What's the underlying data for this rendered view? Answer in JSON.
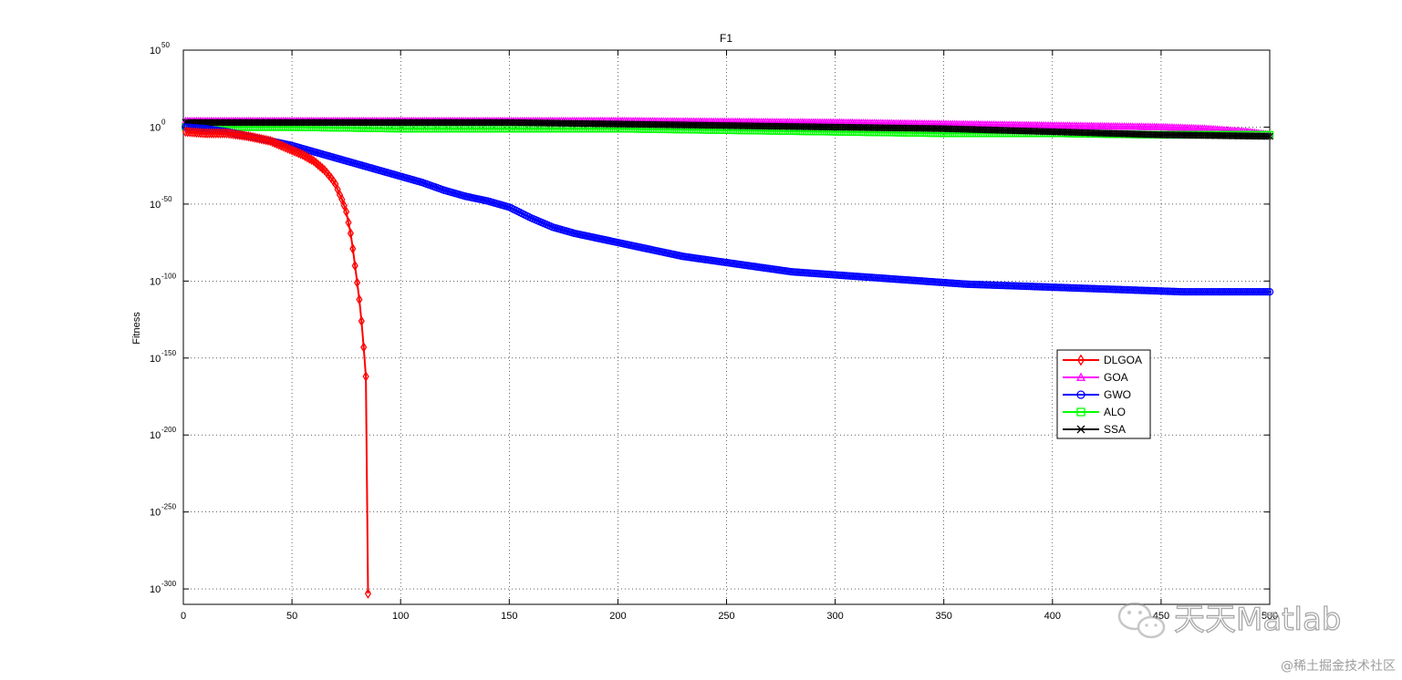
{
  "chart_data": {
    "type": "line",
    "title": "F1",
    "xlabel": "",
    "ylabel": "Fitness",
    "xlim": [
      0,
      500
    ],
    "ylim_log10": [
      -310,
      50
    ],
    "y_scale": "log",
    "grid": true,
    "x_ticks": [
      "0",
      "50",
      "100",
      "150",
      "200",
      "250",
      "300",
      "350",
      "400",
      "450",
      "500"
    ],
    "y_ticks": [
      {
        "base": "10",
        "exp": "50"
      },
      {
        "base": "10",
        "exp": "0"
      },
      {
        "base": "10",
        "exp": "-50"
      },
      {
        "base": "10",
        "exp": "-100"
      },
      {
        "base": "10",
        "exp": "-150"
      },
      {
        "base": "10",
        "exp": "-200"
      },
      {
        "base": "10",
        "exp": "-250"
      },
      {
        "base": "10",
        "exp": "-300"
      }
    ],
    "legend_position": "right-center",
    "series": [
      {
        "name": "DLGOA",
        "color": "#ff0000",
        "marker": "diamond",
        "x": [
          1,
          10,
          20,
          30,
          40,
          50,
          55,
          60,
          65,
          68,
          70,
          72,
          73,
          74,
          75,
          76,
          77,
          78,
          79,
          80,
          81,
          82,
          83,
          84,
          85
        ],
        "log10": [
          -3,
          -4,
          -4,
          -6,
          -9,
          -15,
          -18,
          -22,
          -28,
          -33,
          -37,
          -44,
          -47,
          -51,
          -55,
          -62,
          -69,
          -79,
          -90,
          -101,
          -112,
          -126,
          -143,
          -162,
          -303
        ]
      },
      {
        "name": "GOA",
        "color": "#ff00ff",
        "marker": "triangle",
        "x": [
          1,
          100,
          200,
          300,
          350,
          400,
          450,
          470,
          480,
          490,
          500
        ],
        "log10": [
          4,
          4,
          4,
          3,
          2,
          1,
          0,
          -1,
          -2,
          -3,
          -5
        ]
      },
      {
        "name": "GWO",
        "color": "#0000ff",
        "marker": "circle",
        "x": [
          1,
          10,
          20,
          30,
          40,
          50,
          60,
          70,
          80,
          90,
          100,
          110,
          120,
          130,
          140,
          150,
          160,
          170,
          180,
          190,
          200,
          210,
          220,
          230,
          240,
          250,
          260,
          270,
          280,
          290,
          300,
          320,
          340,
          360,
          380,
          400,
          420,
          440,
          460,
          480,
          500
        ],
        "log10": [
          0,
          -1,
          -3,
          -6,
          -9,
          -12,
          -16,
          -20,
          -24,
          -28,
          -32,
          -36,
          -41,
          -45,
          -48,
          -52,
          -59,
          -65,
          -69,
          -72,
          -75,
          -78,
          -81,
          -84,
          -86,
          -88,
          -90,
          -92,
          -94,
          -95,
          -96,
          -98,
          -100,
          -102,
          -103,
          -104,
          -105,
          -106,
          -107,
          -107,
          -107
        ]
      },
      {
        "name": "ALO",
        "color": "#00ff00",
        "marker": "square",
        "x": [
          1,
          20,
          50,
          100,
          150,
          200,
          250,
          300,
          350,
          400,
          450,
          500
        ],
        "log10": [
          0,
          0,
          0,
          -1,
          -1,
          -1,
          -2,
          -3,
          -4,
          -4,
          -5,
          -5
        ]
      },
      {
        "name": "SSA",
        "color": "#000000",
        "marker": "x",
        "x": [
          1,
          50,
          100,
          150,
          200,
          250,
          300,
          350,
          400,
          450,
          500
        ],
        "log10": [
          3,
          3,
          3,
          3,
          2,
          1,
          0,
          -1,
          -3,
          -5,
          -6
        ]
      }
    ]
  },
  "watermark": {
    "brand_text": "天天Matlab",
    "footer_text": "@稀土掘金技术社区"
  }
}
